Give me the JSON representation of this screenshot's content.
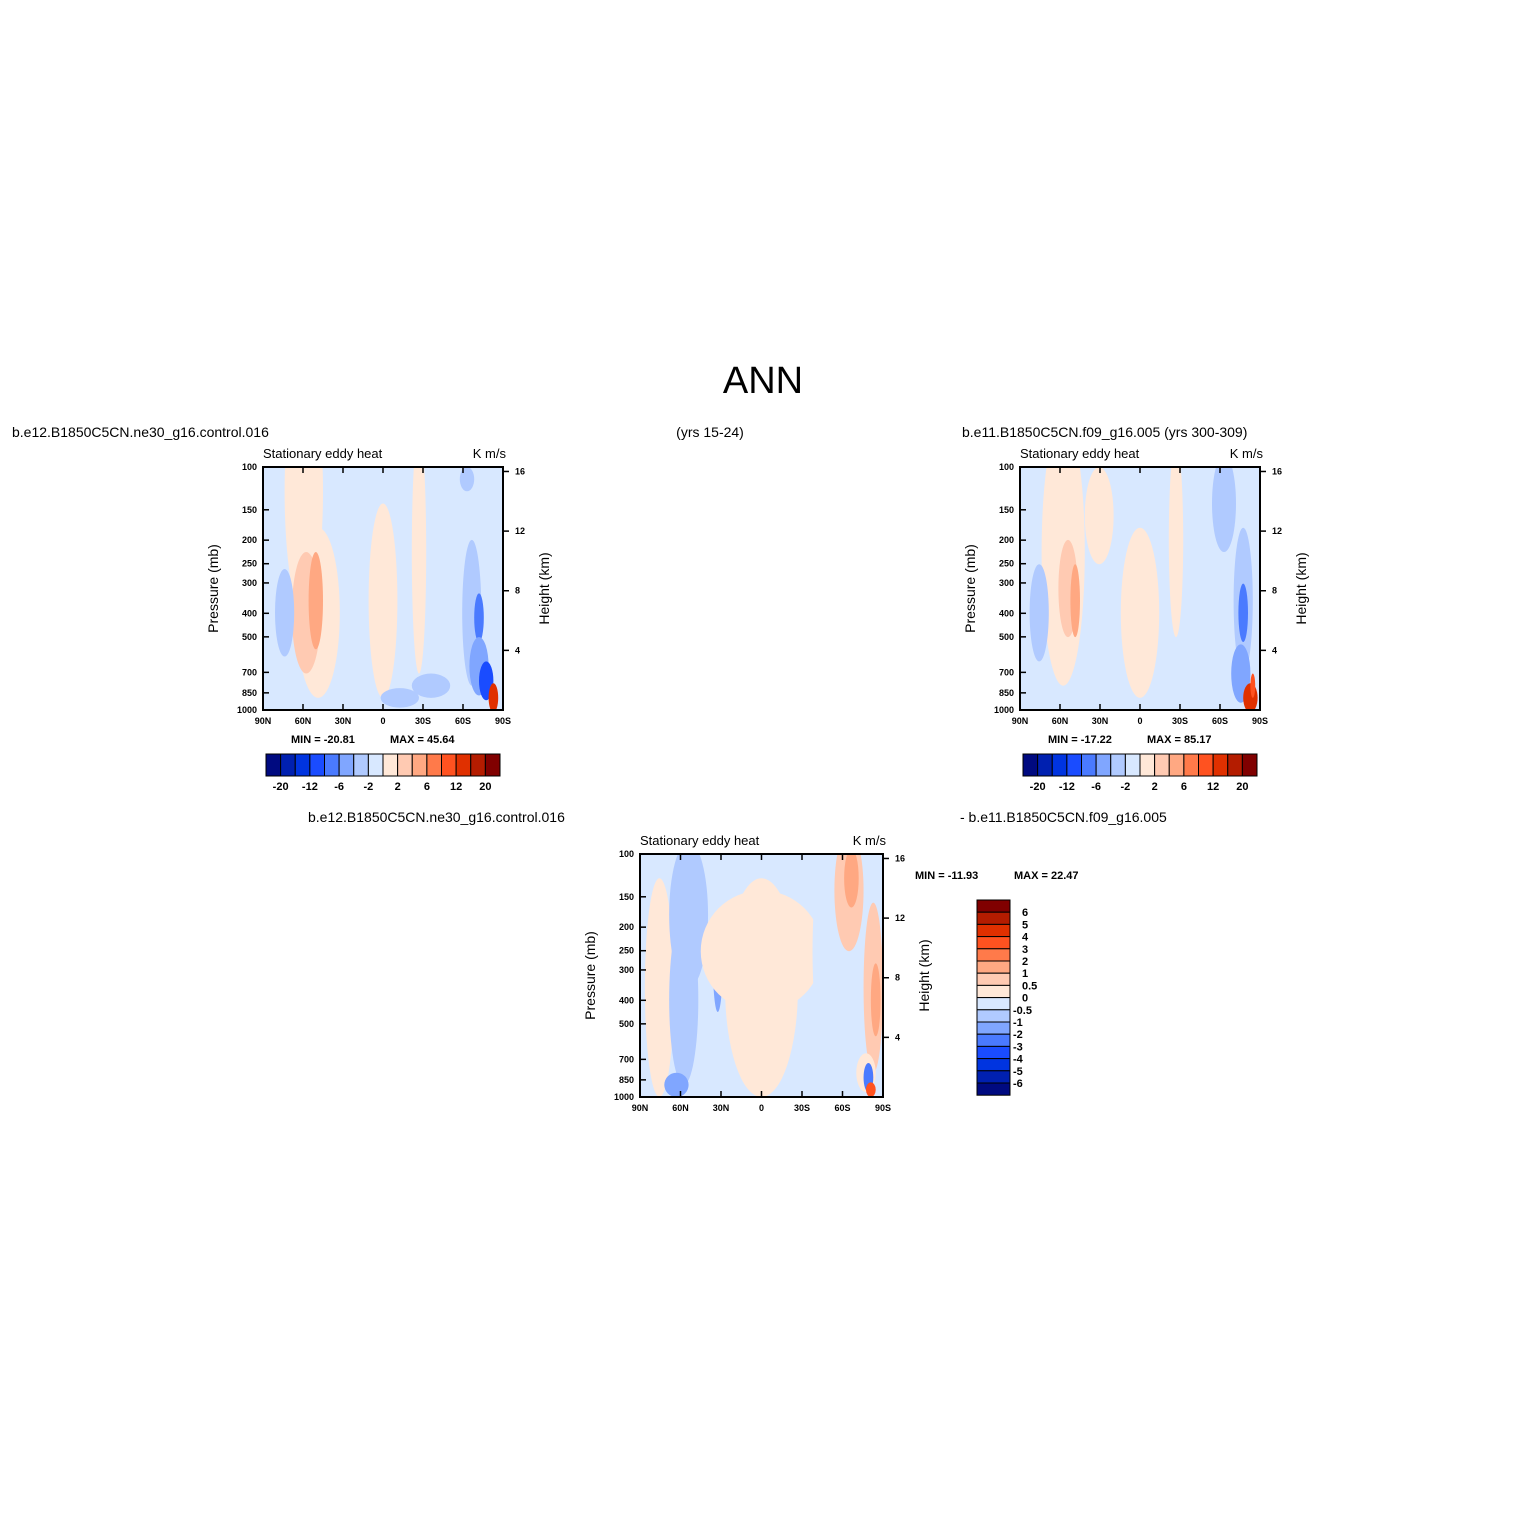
{
  "main_title": "ANN",
  "header": {
    "left_case": "b.e12.B1850C5CN.ne30_g16.control.016",
    "center_years": "(yrs 15-24)",
    "right_case": "b.e11.B1850C5CN.f09_g16.005 (yrs 300-309)",
    "diff_left": "b.e12.B1850C5CN.ne30_g16.control.016",
    "diff_right": "- b.e11.B1850C5CN.f09_g16.005"
  },
  "chart_data": [
    {
      "type": "heatmap",
      "title": "Stationary eddy heat",
      "units": "K m/s",
      "ylabel": "Pressure (mb)",
      "ylabel_right": "Height (km)",
      "x_ticks": [
        "90N",
        "60N",
        "30N",
        "0",
        "30S",
        "60S",
        "90S"
      ],
      "y_ticks": [
        100,
        150,
        200,
        250,
        300,
        400,
        500,
        700,
        850,
        1000
      ],
      "y_right_ticks": [
        4,
        8,
        12,
        16
      ],
      "min_label": "MIN = -20.81",
      "max_label": "MAX =  45.64",
      "colorbar_labels": [
        "-20",
        "-12",
        "-6",
        "-2",
        "2",
        "6",
        "12",
        "20"
      ],
      "colorbar_levels": [
        -20,
        -16,
        -12,
        -8,
        -6,
        -4,
        -2,
        0,
        2,
        4,
        6,
        8,
        12,
        16,
        20
      ]
    },
    {
      "type": "heatmap",
      "title": "Stationary eddy heat",
      "units": "K m/s",
      "ylabel": "Pressure (mb)",
      "ylabel_right": "Height (km)",
      "x_ticks": [
        "90N",
        "60N",
        "30N",
        "0",
        "30S",
        "60S",
        "90S"
      ],
      "y_ticks": [
        100,
        150,
        200,
        250,
        300,
        400,
        500,
        700,
        850,
        1000
      ],
      "y_right_ticks": [
        4,
        8,
        12,
        16
      ],
      "min_label": "MIN = -17.22",
      "max_label": "MAX =  85.17",
      "colorbar_labels": [
        "-20",
        "-12",
        "-6",
        "-2",
        "2",
        "6",
        "12",
        "20"
      ],
      "colorbar_levels": [
        -20,
        -16,
        -12,
        -8,
        -6,
        -4,
        -2,
        0,
        2,
        4,
        6,
        8,
        12,
        16,
        20
      ]
    },
    {
      "type": "heatmap",
      "title": "Stationary eddy heat",
      "units": "K m/s",
      "ylabel": "Pressure (mb)",
      "ylabel_right": "Height (km)",
      "x_ticks": [
        "90N",
        "60N",
        "30N",
        "0",
        "30S",
        "60S",
        "90S"
      ],
      "y_ticks": [
        100,
        150,
        200,
        250,
        300,
        400,
        500,
        700,
        850,
        1000
      ],
      "y_right_ticks": [
        4,
        8,
        12,
        16
      ],
      "min_label": "MIN = -11.93",
      "max_label": "MAX =  22.47",
      "colorbar_labels": [
        "6",
        "5",
        "4",
        "3",
        "2",
        "1",
        "0.5",
        "0",
        "-0.5",
        "-1",
        "-2",
        "-3",
        "-4",
        "-5",
        "-6"
      ]
    }
  ],
  "palette": [
    "#000a80",
    "#0020b0",
    "#0034e0",
    "#1a4cff",
    "#4a7aff",
    "#80a6ff",
    "#b0caff",
    "#d8e8ff",
    "#ffe8d8",
    "#ffcab2",
    "#ffa882",
    "#ff7a4a",
    "#ff5220",
    "#e03000",
    "#b41c00",
    "#800000"
  ]
}
